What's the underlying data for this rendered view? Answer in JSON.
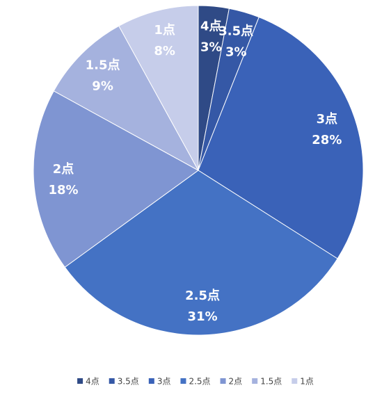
{
  "chart_data": {
    "type": "pie",
    "categories": [
      "4点",
      "3.5点",
      "3点",
      "2.5点",
      "2点",
      "1.5点",
      "1点"
    ],
    "values": [
      3,
      3,
      28,
      31,
      18,
      9,
      8
    ],
    "value_labels": [
      "3%",
      "3%",
      "28%",
      "31%",
      "18%",
      "9%",
      "8%"
    ],
    "colors": [
      "#2f4a86",
      "#3558a6",
      "#3a62b8",
      "#4472c4",
      "#7f95d2",
      "#a5b2de",
      "#c6cdea"
    ],
    "legend": "bottom"
  }
}
